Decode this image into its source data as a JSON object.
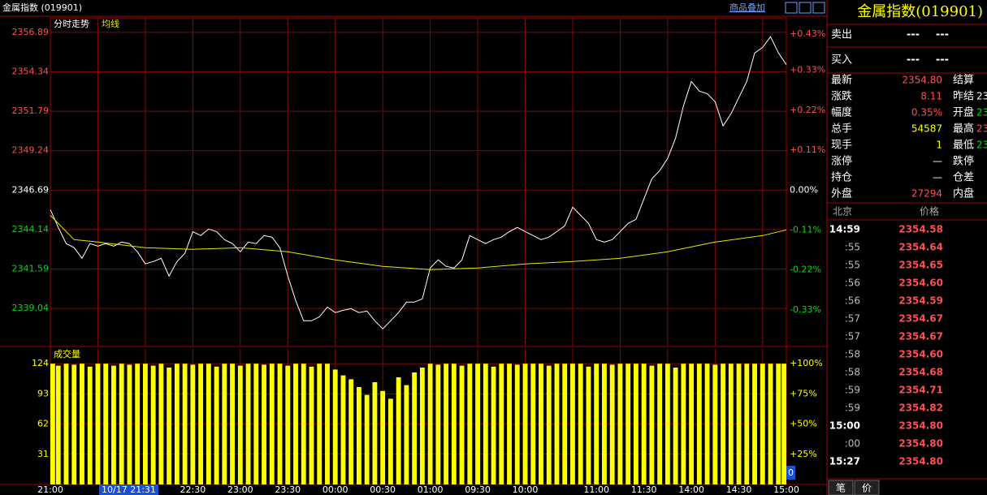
{
  "header": {
    "title": "金属指数 (019901)",
    "overlay_link": "商品叠加"
  },
  "chart_data": [
    {
      "type": "line",
      "grid": true,
      "x_grid_every": 30,
      "xlim": [
        0,
        465
      ],
      "ylim": [
        2336.63,
        2357.83
      ],
      "yticks": [
        2356.89,
        2354.34,
        2351.79,
        2349.24,
        2346.69,
        2344.14,
        2341.59,
        2339.04
      ],
      "base": 2346.69,
      "y2lim": [
        -0.4287,
        0.4747
      ],
      "y2ticks": [
        {
          "value": 0.43,
          "label": "+0.43%"
        },
        {
          "value": 0.33,
          "label": "+0.33%"
        },
        {
          "value": 0.22,
          "label": "+0.22%"
        },
        {
          "value": 0.11,
          "label": "+0.11%"
        },
        {
          "value": 0,
          "label": "0.00%"
        },
        {
          "value": -0.11,
          "label": "-0.11%"
        },
        {
          "value": -0.22,
          "label": "-0.22%"
        },
        {
          "value": -0.33,
          "label": "-0.33%"
        }
      ],
      "series": [
        {
          "name": "分时走势",
          "color": "#ffffff",
          "x": [
            0,
            5,
            10,
            15,
            20,
            25,
            30,
            35,
            40,
            45,
            50,
            55,
            60,
            65,
            70,
            75,
            80,
            85,
            90,
            95,
            100,
            105,
            110,
            115,
            120,
            125,
            130,
            135,
            140,
            145,
            150,
            155,
            160,
            165,
            170,
            175,
            180,
            185,
            190,
            195,
            200,
            205,
            210,
            215,
            220,
            225,
            230,
            235,
            240,
            245,
            250,
            255,
            260,
            265,
            270,
            275,
            280,
            285,
            290,
            295,
            300,
            305,
            310,
            315,
            320,
            325,
            330,
            335,
            340,
            345,
            350,
            355,
            360,
            365,
            370,
            375,
            380,
            385,
            390,
            395,
            400,
            405,
            410,
            415,
            420,
            425,
            430,
            435,
            440,
            445,
            450,
            455,
            460,
            465
          ],
          "values": [
            2345.43,
            2344.28,
            2343.23,
            2342.97,
            2342.28,
            2343.23,
            2343.07,
            2343.23,
            2343.07,
            2343.33,
            2343.23,
            2342.7,
            2341.92,
            2342.07,
            2342.28,
            2341.13,
            2342.07,
            2342.6,
            2344.01,
            2343.75,
            2344.17,
            2344.01,
            2343.49,
            2343.23,
            2342.7,
            2343.33,
            2343.23,
            2343.75,
            2343.65,
            2342.97,
            2341.13,
            2339.55,
            2338.24,
            2338.24,
            2338.5,
            2339.13,
            2338.77,
            2338.92,
            2339.03,
            2338.77,
            2338.87,
            2338.24,
            2337.72,
            2338.24,
            2338.77,
            2339.45,
            2339.45,
            2339.66,
            2341.65,
            2342.18,
            2341.76,
            2341.65,
            2342.18,
            2343.75,
            2343.49,
            2343.23,
            2343.49,
            2343.65,
            2344.01,
            2344.28,
            2344.01,
            2343.75,
            2343.49,
            2343.65,
            2344.01,
            2344.38,
            2345.59,
            2345.06,
            2344.54,
            2343.49,
            2343.33,
            2343.49,
            2344.01,
            2344.54,
            2344.8,
            2346.11,
            2347.42,
            2347.95,
            2348.74,
            2350.05,
            2352.15,
            2353.72,
            2353.09,
            2352.93,
            2352.41,
            2350.84,
            2351.62,
            2352.67,
            2353.72,
            2355.56,
            2355.92,
            2356.61,
            2355.56,
            2354.8
          ]
        },
        {
          "name": "均线",
          "color": "#e8e800",
          "x": [
            0,
            15,
            30,
            60,
            90,
            120,
            150,
            180,
            210,
            240,
            270,
            300,
            330,
            360,
            390,
            420,
            450,
            465
          ],
          "values": [
            2345.06,
            2343.49,
            2343.33,
            2342.97,
            2342.86,
            2342.97,
            2342.7,
            2342.18,
            2341.76,
            2341.55,
            2341.65,
            2341.92,
            2342.07,
            2342.28,
            2342.7,
            2343.33,
            2343.75,
            2344.12
          ]
        }
      ]
    },
    {
      "type": "bar",
      "title": "成交量",
      "color": "#ffff00",
      "grid": true,
      "x_grid_every": 30,
      "xlim": [
        0,
        465
      ],
      "ylim": [
        0,
        140
      ],
      "yticks": [
        124,
        93,
        62,
        31
      ],
      "y2lim": [
        0,
        112.9
      ],
      "y2ticks": [
        {
          "value": 100,
          "label": "+100%"
        },
        {
          "value": 75,
          "label": "+75%"
        },
        {
          "value": 50,
          "label": "+50%"
        },
        {
          "value": 25,
          "label": "+25%"
        }
      ],
      "readout": 0,
      "cursor_label": "10/17 21:31",
      "xticks": [
        {
          "value": 0,
          "label": "21:00"
        },
        {
          "value": 90,
          "label": "22:30"
        },
        {
          "value": 120,
          "label": "23:00"
        },
        {
          "value": 150,
          "label": "23:30"
        },
        {
          "value": 180,
          "label": "00:00"
        },
        {
          "value": 210,
          "label": "00:30"
        },
        {
          "value": 240,
          "label": "01:00"
        },
        {
          "value": 270,
          "label": "09:30"
        },
        {
          "value": 300,
          "label": "10:00"
        },
        {
          "value": 345,
          "label": "11:00"
        },
        {
          "value": 375,
          "label": "11:30"
        },
        {
          "value": 405,
          "label": "14:00"
        },
        {
          "value": 435,
          "label": "14:30"
        },
        {
          "value": 465,
          "label": "15:00"
        }
      ],
      "x": [
        0,
        5,
        10,
        15,
        20,
        25,
        30,
        35,
        40,
        45,
        50,
        55,
        60,
        65,
        70,
        75,
        80,
        85,
        90,
        95,
        100,
        105,
        110,
        115,
        120,
        125,
        130,
        135,
        140,
        145,
        150,
        155,
        160,
        165,
        170,
        175,
        180,
        185,
        190,
        195,
        200,
        205,
        210,
        215,
        220,
        225,
        230,
        235,
        240,
        245,
        250,
        255,
        260,
        265,
        270,
        275,
        280,
        285,
        290,
        295,
        300,
        305,
        310,
        315,
        320,
        325,
        330,
        335,
        340,
        345,
        350,
        355,
        360,
        365,
        370,
        375,
        380,
        385,
        390,
        395,
        400,
        405,
        410,
        415,
        420,
        425,
        430,
        435,
        440,
        445,
        450,
        455,
        460,
        465
      ],
      "values": [
        124,
        122,
        124,
        123,
        124,
        121,
        124,
        124,
        122,
        124,
        123,
        124,
        124,
        122,
        124,
        120,
        124,
        124,
        123,
        124,
        124,
        121,
        124,
        124,
        122,
        124,
        124,
        123,
        124,
        124,
        122,
        124,
        124,
        121,
        124,
        124,
        118,
        112,
        108,
        100,
        92,
        105,
        96,
        88,
        110,
        102,
        115,
        120,
        124,
        123,
        124,
        124,
        122,
        124,
        124,
        124,
        121,
        124,
        124,
        123,
        124,
        124,
        124,
        122,
        124,
        124,
        124,
        124,
        121,
        124,
        124,
        123,
        124,
        124,
        124,
        124,
        122,
        124,
        124,
        120,
        124,
        124,
        124,
        124,
        123,
        124,
        124,
        124,
        124,
        124,
        124,
        124,
        124,
        124
      ]
    }
  ],
  "panel": {
    "title": "金属指数(019901)",
    "orders": [
      [
        "卖出",
        "---",
        "---"
      ],
      [
        "买入",
        "---",
        "---"
      ]
    ],
    "quote": [
      {
        "label": "最新",
        "value": "2354.80",
        "color": "#ff5050",
        "label2": "结算"
      },
      {
        "label": "涨跌",
        "value": "8.11",
        "color": "#ff5050",
        "label2": "昨结",
        "value2": "23",
        "color2": "#ffffff"
      },
      {
        "label": "幅度",
        "value": "0.35%",
        "color": "#ff5050",
        "label2": "开盘",
        "value2": "23",
        "color2": "#00e000"
      },
      {
        "label": "总手",
        "value": "54587",
        "color": "#ffff00",
        "label2": "最高",
        "value2": "23",
        "color2": "#ff5050"
      },
      {
        "label": "现手",
        "value": "1",
        "color": "#ffff00",
        "label2": "最低",
        "value2": "23",
        "color2": "#00e000"
      },
      {
        "label": "涨停",
        "value": "—",
        "color": "#ffffff",
        "label2": "跌停"
      },
      {
        "label": "持仓",
        "value": "—",
        "color": "#ffffff",
        "label2": "仓差"
      },
      {
        "label": "外盘",
        "value": "27294",
        "color": "#ff5050",
        "label2": "内盘"
      }
    ],
    "trade_header": [
      "北京",
      "价格"
    ],
    "trades": [
      {
        "time": "14:59",
        "price": "2354.58"
      },
      {
        "time": ":55",
        "price": "2354.64"
      },
      {
        "time": ":55",
        "price": "2354.65"
      },
      {
        "time": ":56",
        "price": "2354.60"
      },
      {
        "time": ":56",
        "price": "2354.59"
      },
      {
        "time": ":57",
        "price": "2354.67"
      },
      {
        "time": ":57",
        "price": "2354.67"
      },
      {
        "time": ":58",
        "price": "2354.60"
      },
      {
        "time": ":58",
        "price": "2354.68"
      },
      {
        "time": ":59",
        "price": "2354.71"
      },
      {
        "time": ":59",
        "price": "2354.82"
      },
      {
        "time": "15:00",
        "price": "2354.80"
      },
      {
        "time": ":00",
        "price": "2354.80"
      },
      {
        "time": "15:27",
        "price": "2354.80"
      }
    ],
    "tabs": [
      "笔",
      "价"
    ]
  }
}
